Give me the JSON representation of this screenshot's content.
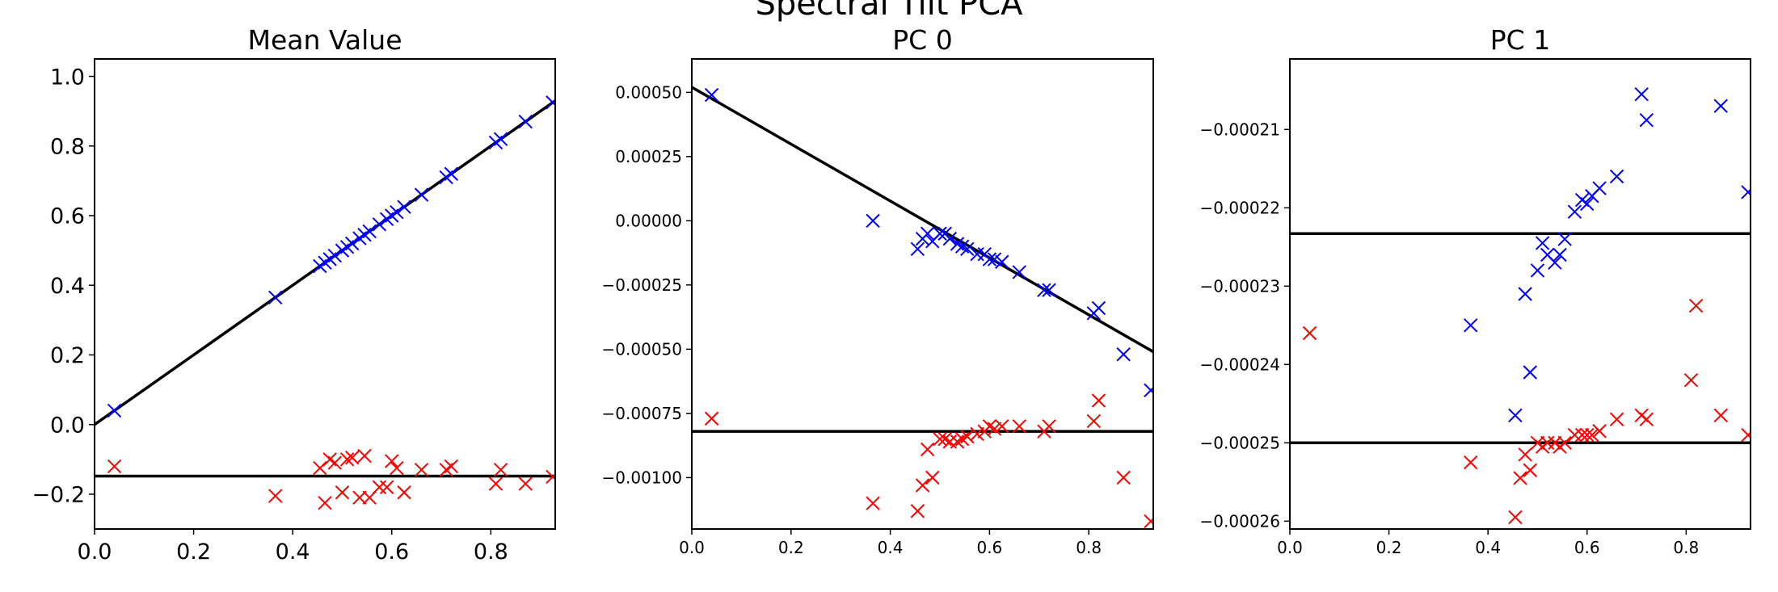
{
  "figure": {
    "suptitle": "Spectral Tilt PCA"
  },
  "colors": {
    "series_a": "#0000ff",
    "series_b": "#ff0000",
    "fit_line": "#000000"
  },
  "chart_data": [
    {
      "type": "scatter",
      "title": "Mean Value",
      "xlim": [
        0.0,
        0.93
      ],
      "ylim": [
        -0.3,
        1.05
      ],
      "xticks": [
        0.0,
        0.2,
        0.4,
        0.6,
        0.8
      ],
      "xtick_labels": [
        "0.0",
        "0.2",
        "0.4",
        "0.6",
        "0.8"
      ],
      "yticks": [
        -0.2,
        0.0,
        0.2,
        0.4,
        0.6,
        0.8,
        1.0
      ],
      "ytick_labels": [
        "−0.2",
        "0.0",
        "0.2",
        "0.4",
        "0.6",
        "0.8",
        "1.0"
      ],
      "grid": false,
      "lines": [
        {
          "x": [
            0.0,
            0.93
          ],
          "y": [
            0.0,
            0.93
          ]
        },
        {
          "x": [
            0.0,
            0.93
          ],
          "y": [
            -0.148,
            -0.148
          ]
        }
      ],
      "series": [
        {
          "color": "#0000ff",
          "x": [
            0.04,
            0.365,
            0.455,
            0.465,
            0.475,
            0.485,
            0.5,
            0.51,
            0.52,
            0.535,
            0.545,
            0.555,
            0.575,
            0.59,
            0.6,
            0.61,
            0.625,
            0.66,
            0.71,
            0.72,
            0.81,
            0.82,
            0.87,
            0.925
          ],
          "y": [
            0.04,
            0.365,
            0.455,
            0.465,
            0.475,
            0.485,
            0.5,
            0.51,
            0.52,
            0.535,
            0.545,
            0.555,
            0.575,
            0.59,
            0.6,
            0.61,
            0.625,
            0.66,
            0.71,
            0.72,
            0.81,
            0.82,
            0.87,
            0.925
          ]
        },
        {
          "color": "#ff0000",
          "x": [
            0.04,
            0.365,
            0.455,
            0.465,
            0.475,
            0.485,
            0.5,
            0.51,
            0.52,
            0.535,
            0.545,
            0.555,
            0.575,
            0.59,
            0.6,
            0.61,
            0.625,
            0.66,
            0.71,
            0.72,
            0.81,
            0.82,
            0.87,
            0.925
          ],
          "y": [
            -0.12,
            -0.205,
            -0.125,
            -0.225,
            -0.1,
            -0.11,
            -0.195,
            -0.1,
            -0.095,
            -0.21,
            -0.09,
            -0.21,
            -0.18,
            -0.18,
            -0.105,
            -0.125,
            -0.195,
            -0.13,
            -0.13,
            -0.12,
            -0.17,
            -0.13,
            -0.17,
            -0.15
          ]
        }
      ]
    },
    {
      "type": "scatter",
      "title": "PC 0",
      "xlim": [
        0.0,
        0.93
      ],
      "ylim": [
        -0.0012,
        0.00063
      ],
      "xticks": [
        0.0,
        0.2,
        0.4,
        0.6,
        0.8
      ],
      "xtick_labels": [
        "0.0",
        "0.2",
        "0.4",
        "0.6",
        "0.8"
      ],
      "yticks": [
        -0.001,
        -0.00075,
        -0.0005,
        -0.00025,
        0.0,
        0.00025,
        0.0005
      ],
      "ytick_labels": [
        "−0.00100",
        "−0.00075",
        "−0.00050",
        "−0.00025",
        "0.00000",
        "0.00025",
        "0.00050"
      ],
      "grid": false,
      "lines": [
        {
          "x": [
            0.0,
            0.93
          ],
          "y": [
            0.00052,
            -0.00051
          ]
        },
        {
          "x": [
            0.0,
            0.93
          ],
          "y": [
            -0.00082,
            -0.00082
          ]
        }
      ],
      "series": [
        {
          "color": "#0000ff",
          "x": [
            0.04,
            0.365,
            0.455,
            0.465,
            0.475,
            0.485,
            0.5,
            0.51,
            0.52,
            0.535,
            0.545,
            0.555,
            0.575,
            0.59,
            0.6,
            0.61,
            0.625,
            0.66,
            0.71,
            0.72,
            0.81,
            0.82,
            0.87,
            0.925
          ],
          "y": [
            0.00049,
            0.0,
            -0.00011,
            -7e-05,
            -5e-05,
            -8e-05,
            -5e-05,
            -5e-05,
            -7e-05,
            -9e-05,
            -0.0001,
            -0.00011,
            -0.00013,
            -0.00013,
            -0.00015,
            -0.00015,
            -0.00016,
            -0.0002,
            -0.00027,
            -0.00027,
            -0.00036,
            -0.00034,
            -0.00052,
            -0.00066
          ]
        },
        {
          "color": "#ff0000",
          "x": [
            0.04,
            0.365,
            0.455,
            0.465,
            0.475,
            0.485,
            0.5,
            0.51,
            0.52,
            0.535,
            0.545,
            0.555,
            0.575,
            0.59,
            0.6,
            0.61,
            0.625,
            0.66,
            0.71,
            0.72,
            0.81,
            0.82,
            0.87,
            0.925
          ],
          "y": [
            -0.00077,
            -0.0011,
            -0.00113,
            -0.00103,
            -0.00089,
            -0.001,
            -0.00085,
            -0.00085,
            -0.00086,
            -0.00086,
            -0.00085,
            -0.00084,
            -0.00083,
            -0.00082,
            -0.0008,
            -0.00081,
            -0.0008,
            -0.0008,
            -0.00082,
            -0.0008,
            -0.00078,
            -0.0007,
            -0.001,
            -0.00117
          ]
        }
      ]
    },
    {
      "type": "scatter",
      "title": "PC 1",
      "xlim": [
        0.0,
        0.93
      ],
      "ylim": [
        -0.000261,
        -0.000201
      ],
      "xticks": [
        0.0,
        0.2,
        0.4,
        0.6,
        0.8
      ],
      "xtick_labels": [
        "0.0",
        "0.2",
        "0.4",
        "0.6",
        "0.8"
      ],
      "yticks": [
        -0.00026,
        -0.00025,
        -0.00024,
        -0.00023,
        -0.00022,
        -0.00021
      ],
      "ytick_labels": [
        "−0.00026",
        "−0.00025",
        "−0.00024",
        "−0.00023",
        "−0.00022",
        "−0.00021"
      ],
      "grid": false,
      "lines": [
        {
          "x": [
            0.0,
            0.93
          ],
          "y": [
            -0.0002233,
            -0.0002233
          ]
        },
        {
          "x": [
            0.0,
            0.93
          ],
          "y": [
            -0.00025,
            -0.00025
          ]
        }
      ],
      "series": [
        {
          "color": "#0000ff",
          "x": [
            0.365,
            0.455,
            0.475,
            0.485,
            0.5,
            0.51,
            0.52,
            0.535,
            0.545,
            0.555,
            0.575,
            0.59,
            0.6,
            0.61,
            0.625,
            0.66,
            0.71,
            0.72,
            0.87,
            0.925
          ],
          "y": [
            -0.000235,
            -0.0002465,
            -0.000231,
            -0.000241,
            -0.000228,
            -0.0002245,
            -0.000226,
            -0.000227,
            -0.000226,
            -0.000224,
            -0.0002205,
            -0.000219,
            -0.0002195,
            -0.0002185,
            -0.0002175,
            -0.000216,
            -0.0002055,
            -0.0002088,
            -0.000207,
            -0.000218
          ]
        },
        {
          "color": "#ff0000",
          "x": [
            0.04,
            0.365,
            0.455,
            0.465,
            0.475,
            0.485,
            0.5,
            0.51,
            0.52,
            0.535,
            0.545,
            0.555,
            0.575,
            0.59,
            0.6,
            0.61,
            0.625,
            0.66,
            0.71,
            0.72,
            0.81,
            0.82,
            0.87,
            0.925
          ],
          "y": [
            -0.000236,
            -0.0002525,
            -0.0002595,
            -0.0002545,
            -0.0002515,
            -0.0002535,
            -0.00025,
            -0.0002505,
            -0.00025,
            -0.00025,
            -0.0002505,
            -0.00025,
            -0.000249,
            -0.000249,
            -0.000249,
            -0.000249,
            -0.0002485,
            -0.000247,
            -0.0002465,
            -0.000247,
            -0.000242,
            -0.0002325,
            -0.0002465,
            -0.000249
          ]
        }
      ]
    }
  ]
}
